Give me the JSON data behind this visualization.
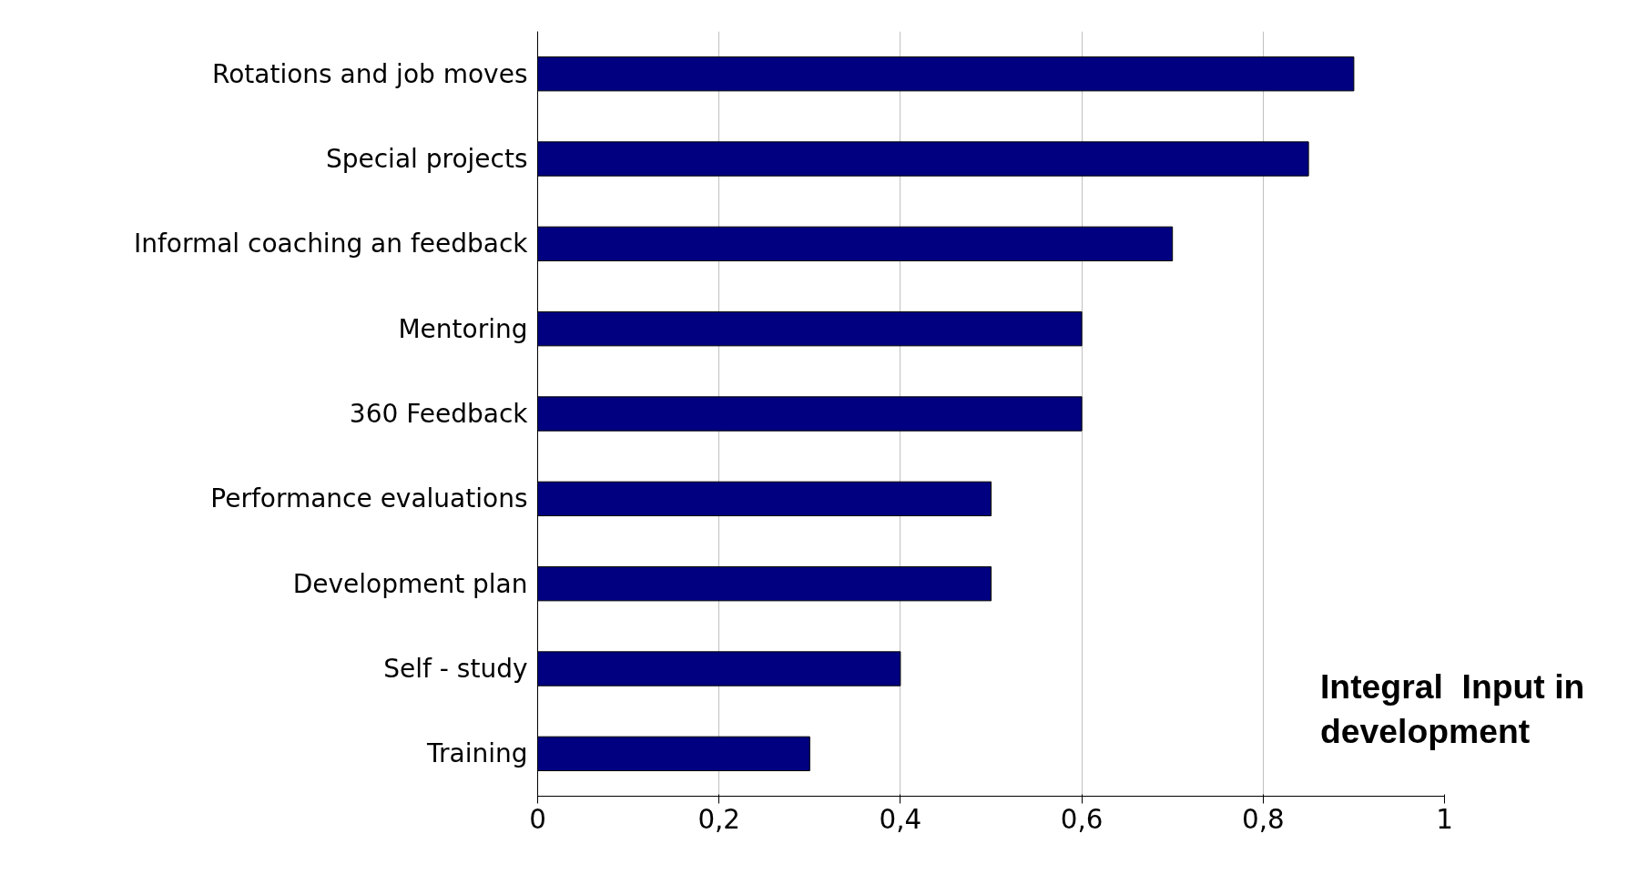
{
  "chart_data": {
    "type": "bar",
    "orientation": "horizontal",
    "categories": [
      "Rotations and job moves",
      "Special projects",
      "Informal coaching an feedback",
      "Mentoring",
      "360 Feedback",
      "Performance evaluations",
      "Development plan",
      "Self - study",
      "Training"
    ],
    "values": [
      0.9,
      0.85,
      0.7,
      0.6,
      0.6,
      0.5,
      0.5,
      0.4,
      0.3
    ],
    "color": "#000080",
    "xlim": [
      0,
      1
    ],
    "xticks": [
      0,
      {
        "value": 0.2,
        "label": "0,2"
      },
      {
        "value": 0.4,
        "label": "0,4"
      },
      {
        "value": 0.6,
        "label": "0,6"
      },
      {
        "value": 0.8,
        "label": "0,8"
      },
      1
    ],
    "grid": "x",
    "annotations": [
      "Integral  Input in development"
    ]
  }
}
